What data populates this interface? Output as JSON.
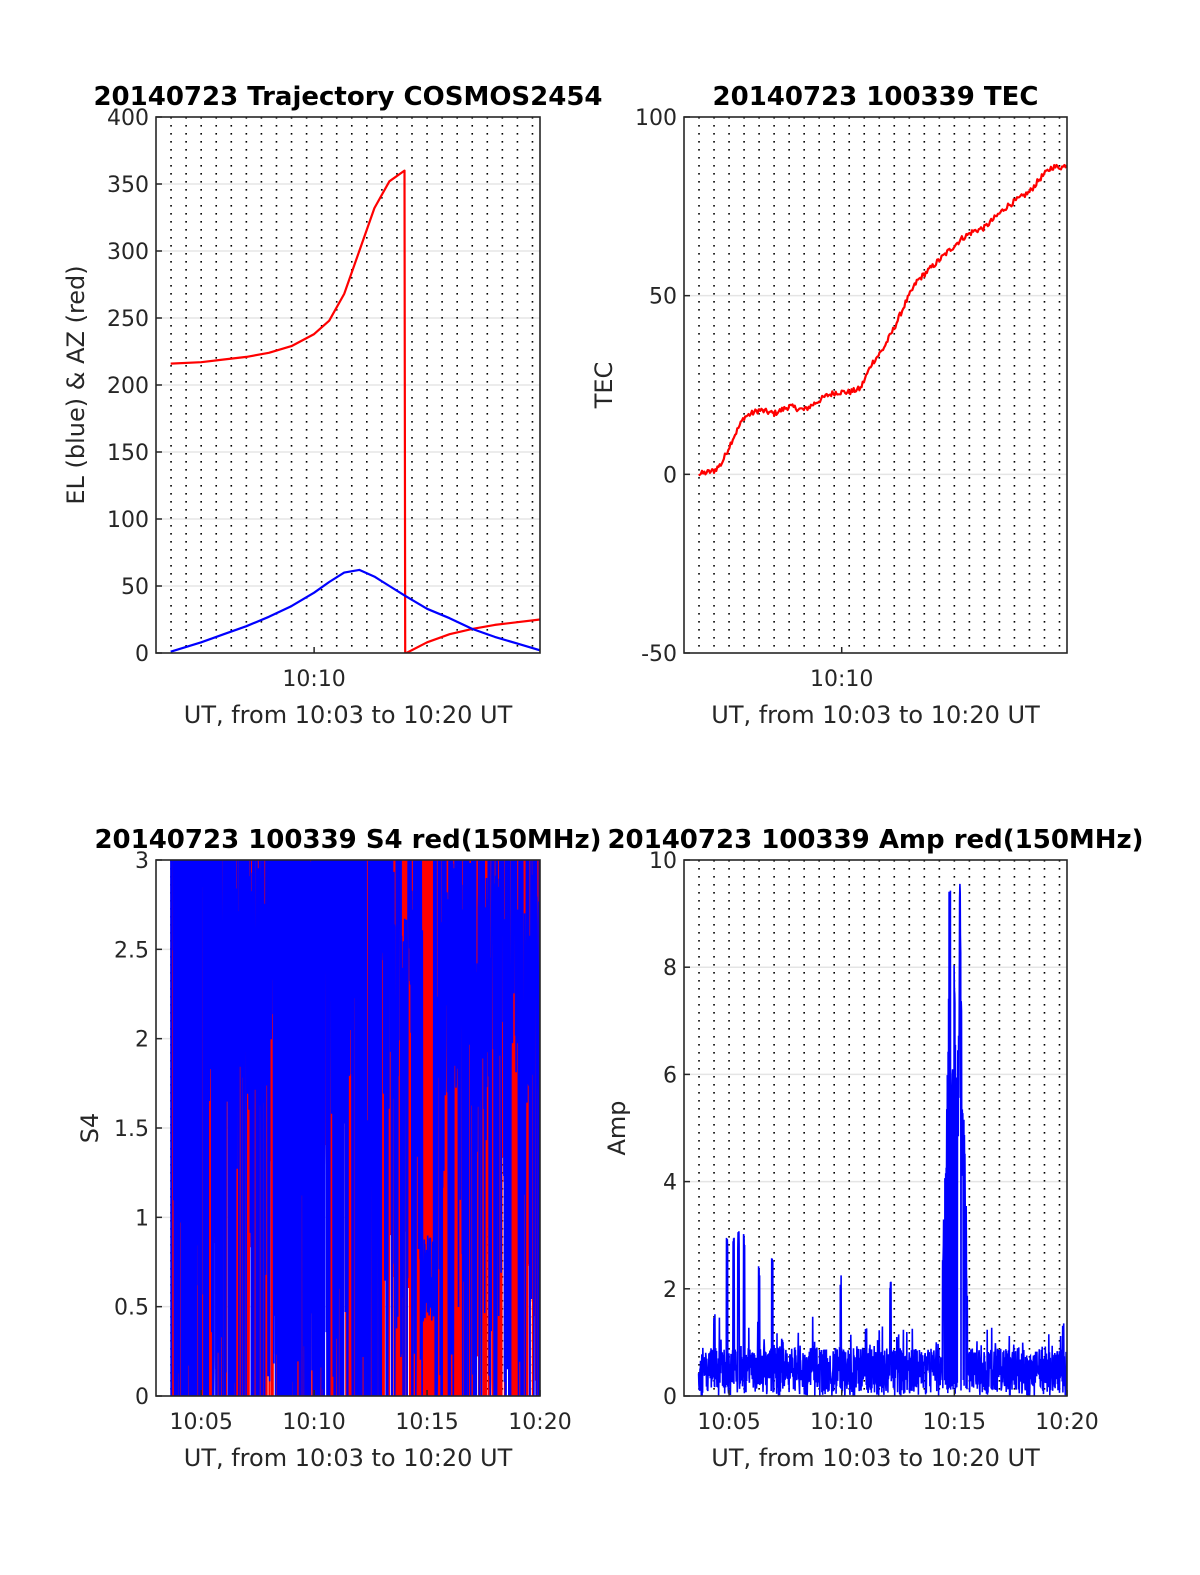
{
  "colors": {
    "el": "#0000ff",
    "az": "#ff0000",
    "grid": "#e5e5e5",
    "axis": "#262626",
    "background": "#ffffff"
  },
  "chart_data": [
    {
      "type": "line",
      "title": "20140723 Trajectory COSMOS2454",
      "xlabel": "UT, from 10:03 to 10:20 UT",
      "ylabel": "EL (blue) & AZ (red)",
      "xlim": [
        "10:03",
        "10:20"
      ],
      "ylim": [
        0,
        400
      ],
      "yticks": [
        0,
        50,
        100,
        150,
        200,
        250,
        300,
        350,
        400
      ],
      "xticks": [
        "10:10"
      ],
      "grid": "horizontal solid, vertical dotted every 40 s",
      "series": [
        {
          "color": "#ff0000",
          "x": [
            "10:03:39",
            "10:05:00",
            "10:06:00",
            "10:07:00",
            "10:08:00",
            "10:09:00",
            "10:10:00",
            "10:10:40",
            "10:11:20",
            "10:12:00",
            "10:12:40",
            "10:13:20",
            "10:14:00",
            "10:14:02",
            "10:14:05",
            "10:15:00",
            "10:16:00",
            "10:17:00",
            "10:18:00",
            "10:19:00",
            "10:20:00"
          ],
          "y": [
            216,
            217,
            219,
            221,
            224,
            229,
            238,
            248,
            268,
            300,
            332,
            352,
            360,
            0,
            0,
            8,
            14,
            18,
            21,
            23,
            25
          ]
        },
        {
          "color": "#0000ff",
          "x": [
            "10:03:39",
            "10:05:00",
            "10:06:00",
            "10:07:00",
            "10:08:00",
            "10:09:00",
            "10:10:00",
            "10:10:40",
            "10:11:20",
            "10:12:00",
            "10:12:40",
            "10:13:20",
            "10:14:00",
            "10:15:00",
            "10:16:00",
            "10:17:00",
            "10:18:00",
            "10:19:00",
            "10:20:00"
          ],
          "y": [
            1,
            8,
            14,
            20,
            27,
            35,
            45,
            53,
            60,
            62,
            57,
            50,
            43,
            33,
            26,
            18,
            12,
            7,
            2
          ]
        }
      ]
    },
    {
      "type": "line",
      "title": "20140723 100339 TEC",
      "xlabel": "UT, from 10:03 to 10:20 UT",
      "ylabel": "TEC",
      "xlim": [
        "10:03",
        "10:20"
      ],
      "ylim": [
        -50,
        100
      ],
      "yticks": [
        -50,
        0,
        50,
        100
      ],
      "xticks": [
        "10:10"
      ],
      "grid": "horizontal solid, vertical dotted every 40 s",
      "series": [
        {
          "color": "#ff0000",
          "x": [
            "10:03:39",
            "10:04:20",
            "10:04:40",
            "10:05:10",
            "10:05:40",
            "10:06:20",
            "10:07:00",
            "10:07:40",
            "10:08:20",
            "10:08:50",
            "10:09:20",
            "10:09:45",
            "10:10:20",
            "10:10:50",
            "10:11:20",
            "10:11:50",
            "10:12:20",
            "10:12:50",
            "10:13:20",
            "10:13:50",
            "10:14:20",
            "10:14:50",
            "10:15:20",
            "10:15:50",
            "10:16:20",
            "10:16:50",
            "10:17:20",
            "10:17:50",
            "10:18:20",
            "10:18:50",
            "10:19:20",
            "10:19:50",
            "10:20:00"
          ],
          "y": [
            0,
            1,
            3,
            10,
            16,
            18,
            17,
            19,
            18,
            20,
            22,
            23,
            23,
            24,
            31,
            35,
            41,
            48,
            54,
            57,
            60,
            63,
            66,
            68,
            69,
            72,
            75,
            77,
            79,
            83,
            86,
            86,
            87
          ]
        }
      ]
    },
    {
      "type": "line",
      "title": "20140723 100339 S4 red(150MHz)",
      "xlabel": "UT, from 10:03 to 10:20 UT",
      "ylabel": "S4",
      "xlim": [
        "10:03",
        "10:20"
      ],
      "ylim": [
        0,
        3
      ],
      "yticks": [
        0,
        0.5,
        1,
        1.5,
        2,
        2.5,
        3
      ],
      "xticks": [
        "10:05",
        "10:10",
        "10:15",
        "10:20"
      ],
      "grid": "horizontal solid, vertical dotted every 40 s",
      "series": [
        {
          "color": "#ff0000",
          "note": "dense spikes 0–3, red most visible 10:06–10:08 and 10:13–10:20"
        },
        {
          "color": "#0000ff",
          "note": "dense spikes 0–3 across the whole interval"
        }
      ]
    },
    {
      "type": "line",
      "title": "20140723 100339 Amp red(150MHz)",
      "xlabel": "UT, from 10:03 to 10:20 UT",
      "ylabel": "Amp",
      "xlim": [
        "10:03",
        "10:20"
      ],
      "ylim": [
        0,
        10
      ],
      "yticks": [
        0,
        2,
        4,
        6,
        8,
        10
      ],
      "xticks": [
        "10:05",
        "10:10",
        "10:15",
        "10:20"
      ],
      "grid": "horizontal solid, vertical dotted every 40 s",
      "series": [
        {
          "color": "#0000ff",
          "peaks": {
            "x": [
              "10:04:21",
              "10:04:55",
              "10:05:12",
              "10:05:25",
              "10:05:40",
              "10:06:20",
              "10:06:55",
              "10:09:57",
              "10:12:10",
              "10:14:48",
              "10:15:00",
              "10:15:15",
              "10:19:50"
            ],
            "y": [
              1.6,
              3.2,
              3.3,
              3.1,
              3.2,
              2.5,
              2.6,
              2.3,
              2.2,
              9.8,
              8.5,
              9.6,
              1.5
            ]
          },
          "baseline": "noise between about 0.2 and 1.2"
        }
      ]
    }
  ]
}
